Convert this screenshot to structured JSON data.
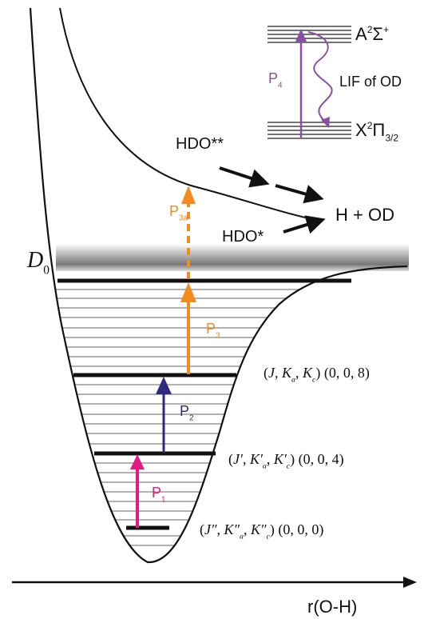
{
  "spectroscopy": {
    "upper_state": [
      {
        "t": "A"
      },
      {
        "t": "2",
        "s": "sup"
      },
      {
        "t": "Σ"
      },
      {
        "t": "+",
        "s": "sup"
      }
    ],
    "lower_state": [
      {
        "t": "X"
      },
      {
        "t": "2",
        "s": "sup"
      },
      {
        "t": "Π"
      },
      {
        "t": "3/2",
        "s": "sub"
      }
    ],
    "probe": [
      {
        "t": "P"
      },
      {
        "t": "4",
        "s": "sub"
      }
    ],
    "fluorescence": [
      {
        "t": "LIF of OD"
      }
    ]
  },
  "species": {
    "hot_hdo": [
      {
        "t": "HDO**"
      }
    ],
    "warm_hdo": [
      {
        "t": "HDO*"
      }
    ],
    "products": [
      {
        "t": "H + OD"
      }
    ]
  },
  "threshold": [
    {
      "t": "D",
      "s": "i"
    },
    {
      "t": "0",
      "s": "sub"
    }
  ],
  "pumps": {
    "p1": [
      {
        "t": "P"
      },
      {
        "t": "1",
        "s": "sub"
      }
    ],
    "p2": [
      {
        "t": "P"
      },
      {
        "t": "2",
        "s": "sub"
      }
    ],
    "p3": [
      {
        "t": "P"
      },
      {
        "t": "3",
        "s": "sub"
      }
    ],
    "p3a": [
      {
        "t": "P"
      },
      {
        "t": "3a",
        "s": "sub"
      }
    ]
  },
  "states": {
    "top": [
      {
        "t": "("
      },
      {
        "t": "J",
        "s": "i"
      },
      {
        "t": ", "
      },
      {
        "t": "K",
        "s": "i"
      },
      {
        "t": "a",
        "s": "isub"
      },
      {
        "t": ", "
      },
      {
        "t": "K",
        "s": "i"
      },
      {
        "t": "c",
        "s": "isub"
      },
      {
        "t": ")  (0, 0, 8)"
      }
    ],
    "middle": [
      {
        "t": "("
      },
      {
        "t": "J′",
        "s": "i"
      },
      {
        "t": ", "
      },
      {
        "t": "K′",
        "s": "i"
      },
      {
        "t": "a",
        "s": "isub"
      },
      {
        "t": ", "
      },
      {
        "t": "K′",
        "s": "i"
      },
      {
        "t": "c",
        "s": "isub"
      },
      {
        "t": ")  (0, 0, 4)"
      }
    ],
    "bottom": [
      {
        "t": "("
      },
      {
        "t": "J″",
        "s": "i"
      },
      {
        "t": ", "
      },
      {
        "t": "K″",
        "s": "i"
      },
      {
        "t": "a",
        "s": "isub"
      },
      {
        "t": ", "
      },
      {
        "t": "K″",
        "s": "i"
      },
      {
        "t": "c",
        "s": "isub"
      },
      {
        "t": ")  (0, 0, 0)"
      }
    ]
  },
  "axis_label": [
    {
      "t": "r(O-H)"
    }
  ]
}
